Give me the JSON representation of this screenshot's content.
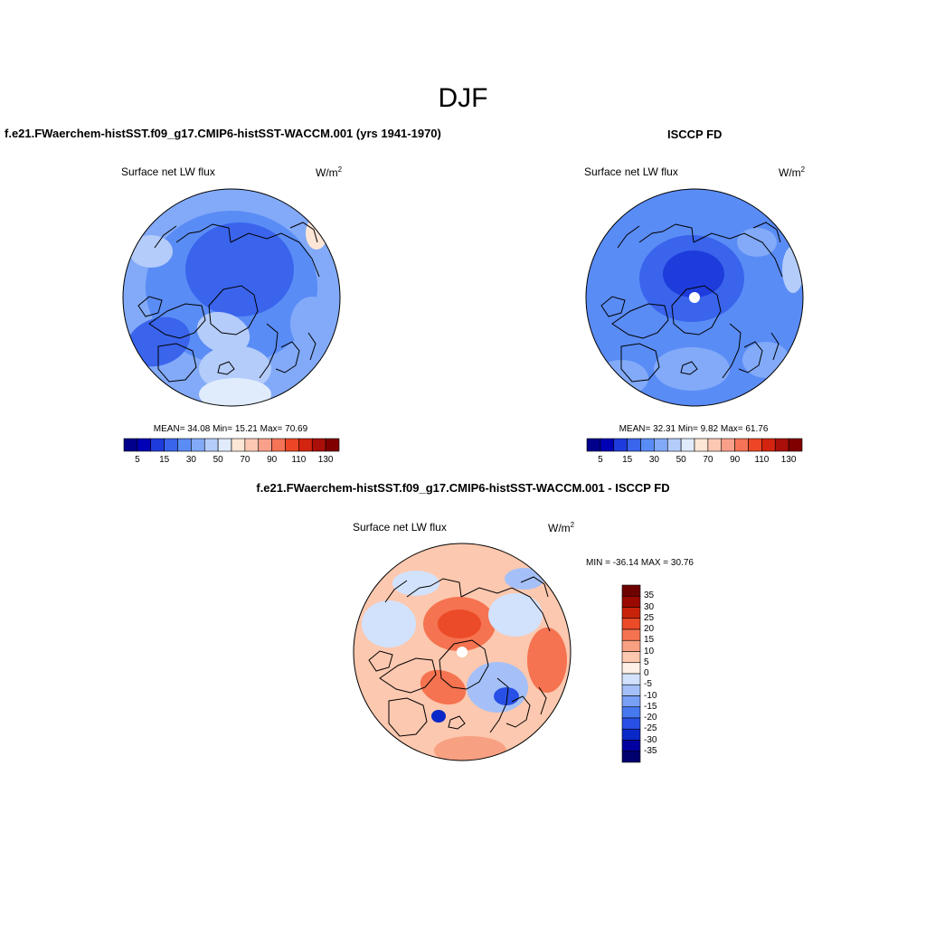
{
  "title": "DJF",
  "panels": [
    {
      "title": "f.e21.FWaerchem-histSST.f09_g17.CMIP6-histSST-WACCM.001 (yrs 1941-1970)",
      "variable": "Surface net LW flux",
      "units": "W/m",
      "units_exp": "2",
      "stats": "MEAN=  34.08  Min=  15.21  Max=  70.69",
      "colorbar_labels": [
        "5",
        "15",
        "30",
        "50",
        "70",
        "90",
        "110",
        "130"
      ]
    },
    {
      "title": "ISCCP FD",
      "variable": "Surface net LW flux",
      "units": "W/m",
      "units_exp": "2",
      "stats": "MEAN=  32.31  Min=   9.82  Max=  61.76",
      "colorbar_labels": [
        "5",
        "15",
        "30",
        "50",
        "70",
        "90",
        "110",
        "130"
      ]
    },
    {
      "title": "f.e21.FWaerchem-histSST.f09_g17.CMIP6-histSST-WACCM.001 - ISCCP FD",
      "variable": "Surface net LW flux",
      "units": "W/m",
      "units_exp": "2",
      "stats": "MIN = -36.14 MAX =  30.76",
      "colorbar_labels": [
        "35",
        "30",
        "25",
        "20",
        "15",
        "10",
        "5",
        "0",
        "-5",
        "-10",
        "-15",
        "-20",
        "-25",
        "-30",
        "-35"
      ]
    }
  ],
  "colors": {
    "abs_scale": [
      "#00008b",
      "#0000b4",
      "#1e3cdc",
      "#3a64ec",
      "#5a8cf6",
      "#82aaf8",
      "#b4ccfa",
      "#e0ecfc",
      "#fde6d6",
      "#fcc8b4",
      "#f9a08a",
      "#f57356",
      "#ec4626",
      "#d2240e",
      "#aa100a",
      "#800000"
    ],
    "diff_scale": [
      "#00006e",
      "#0000a0",
      "#0a28c8",
      "#2850e6",
      "#4678f0",
      "#78a0f5",
      "#a5c0f8",
      "#d2e2fc",
      "#fef0e6",
      "#fcc8af",
      "#f8a082",
      "#f57350",
      "#eb4b28",
      "#c8230a",
      "#9b0a00",
      "#6e0000"
    ]
  }
}
